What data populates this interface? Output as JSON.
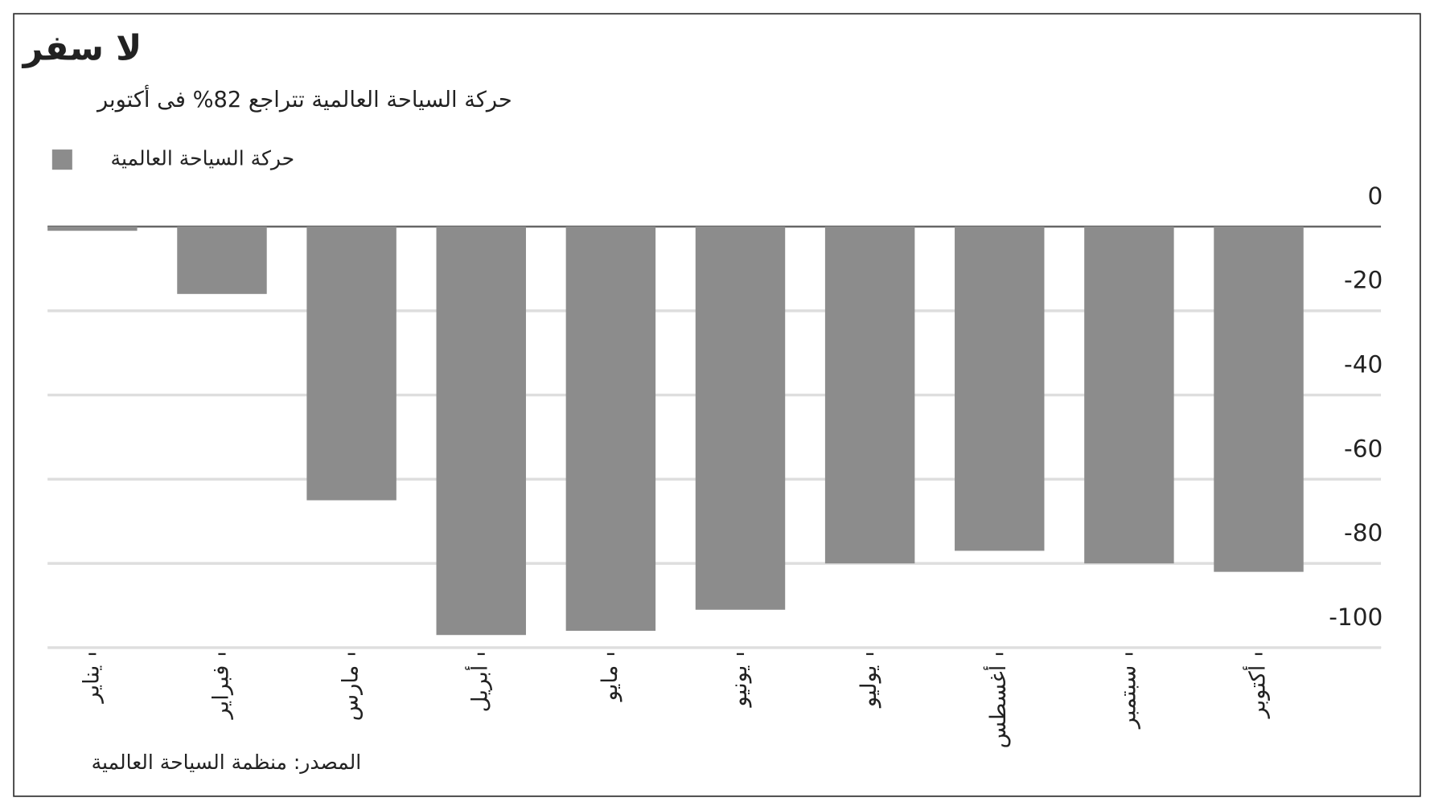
{
  "chart_data": {
    "type": "bar",
    "title": "لا سفر",
    "subtitle": "حركة السياحة العالمية تتراجع 82% فى أكتوبر",
    "source": "المصدر: منظمة السياحة العالمية",
    "categories": [
      "يناير",
      "فبراير",
      "مارس",
      "أبريل",
      "مايو",
      "يونيو",
      "يوليو",
      "أغسطس",
      "سبتمبر",
      "أكتوبر"
    ],
    "series": [
      {
        "name": "حركة السياحة العالمية",
        "color": "#8c8c8c",
        "values": [
          -1,
          -16,
          -65,
          -97,
          -96,
          -91,
          -80,
          -77,
          -80,
          -82
        ]
      }
    ],
    "ylim": [
      -100,
      0
    ],
    "yticks": [
      0,
      -20,
      -40,
      -60,
      -80,
      -100
    ],
    "grid": true
  }
}
